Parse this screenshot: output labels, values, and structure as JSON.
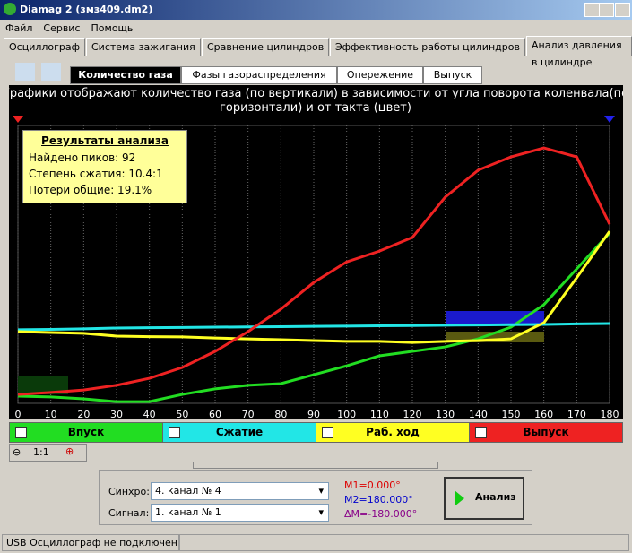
{
  "window": {
    "title": "Diamag 2 (змз409.dm2)"
  },
  "menu": [
    "Файл",
    "Сервис",
    "Помощь"
  ],
  "tabs": [
    "Осциллограф",
    "Система зажигания",
    "Сравнение цилиндров",
    "Эффективность работы цилиндров",
    "Анализ давления в цилиндре"
  ],
  "subtabs": [
    "Количество газа",
    "Фазы газораспределения",
    "Опережение",
    "Выпуск"
  ],
  "description": [
    "Графики отображают количество газа (по вертикали) в зависимости от угла поворота коленвала(по",
    "горизонтали) и от такта (цвет)"
  ],
  "results": {
    "title": "Результаты анализа",
    "lines": [
      "Найдено пиков: 92",
      "Степень сжатия: 10.4:1",
      "Потери общие: 19.1%"
    ]
  },
  "chart_data": {
    "type": "line",
    "x": [
      0,
      10,
      20,
      30,
      40,
      50,
      60,
      70,
      80,
      90,
      100,
      110,
      120,
      130,
      140,
      150,
      160,
      170,
      180
    ],
    "xlim": [
      0,
      180
    ],
    "xticks": [
      0,
      10,
      20,
      30,
      40,
      50,
      60,
      70,
      80,
      90,
      100,
      110,
      120,
      130,
      140,
      150,
      160,
      170,
      180
    ],
    "ylim": [
      0,
      100
    ],
    "grid": true,
    "series": [
      {
        "name": "Впуск",
        "color": "#22dd22",
        "values": [
          2.6,
          2.3,
          1.6,
          0.6,
          0.6,
          3.2,
          5.2,
          6.5,
          7.1,
          10.3,
          13.5,
          17.1,
          18.7,
          20.3,
          23.2,
          27.4,
          35.5,
          48.4,
          61.3
        ]
      },
      {
        "name": "Сжатие",
        "color": "#22e6e6",
        "values": [
          26.5,
          26.6,
          26.8,
          27.1,
          27.2,
          27.3,
          27.4,
          27.5,
          27.6,
          27.7,
          27.8,
          27.9,
          28.0,
          28.1,
          28.2,
          28.3,
          28.4,
          28.6,
          28.7
        ]
      },
      {
        "name": "Раб. ход",
        "color": "#ffff22",
        "values": [
          25.8,
          25.5,
          25.2,
          24.2,
          24.0,
          23.9,
          23.5,
          23.2,
          22.9,
          22.6,
          22.3,
          22.3,
          21.9,
          22.3,
          22.6,
          23.2,
          29.0,
          45.2,
          61.9
        ]
      },
      {
        "name": "Выпуск",
        "color": "#ee2222",
        "values": [
          3.2,
          3.9,
          4.8,
          6.5,
          9.0,
          12.9,
          18.7,
          25.8,
          33.9,
          43.5,
          50.9,
          54.8,
          59.7,
          74.2,
          83.9,
          88.7,
          91.9,
          88.7,
          64.5
        ]
      }
    ]
  },
  "zoom": "1:1",
  "controls": {
    "sync_label": "Синхро:",
    "sync_value": "4.  канал № 4",
    "signal_label": "Сигнал:",
    "signal_value": "1.  канал № 1",
    "m1": "M1=0.000°",
    "m2": "M2=180.000°",
    "dm": "ΔM=-180.000°",
    "button": "Анализ"
  },
  "status": "USB Осциллограф не подключен"
}
